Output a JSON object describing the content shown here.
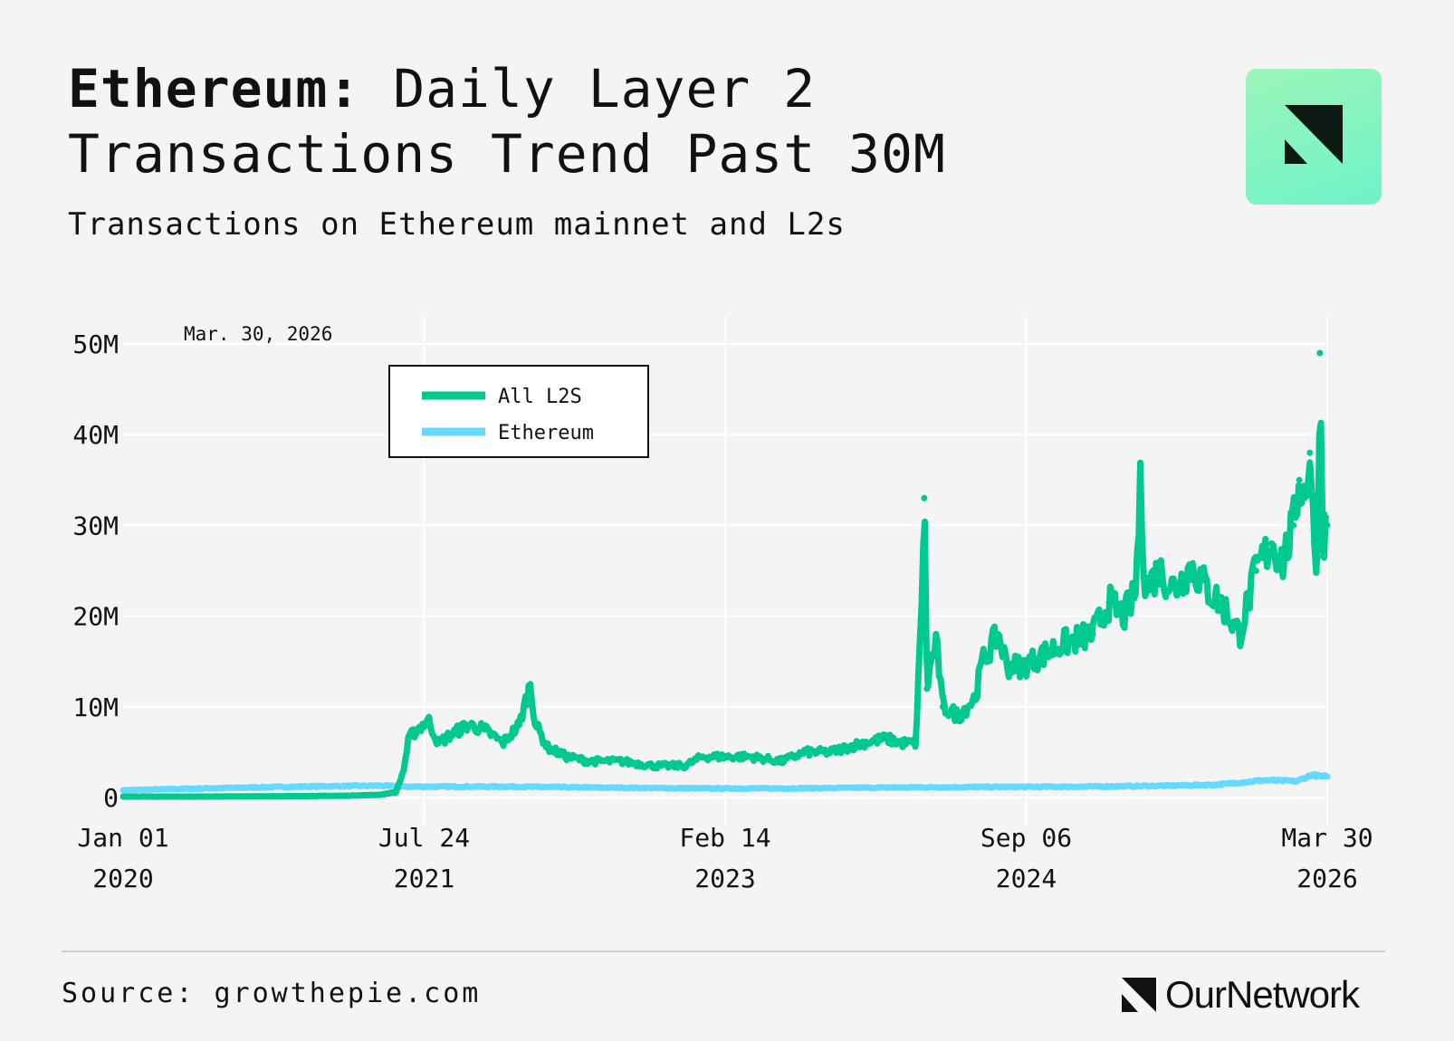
{
  "header": {
    "title_bold": "Ethereum:",
    "title_rest": " Daily Layer 2 Transactions Trend Past 30M",
    "subtitle": "Transactions on Ethereum mainnet and L2s"
  },
  "footer": {
    "source": "Source: growthepie.com",
    "brand": "OurNetwork"
  },
  "colors": {
    "l2": "#00c98f",
    "ethereum": "#66d9ff",
    "background": "#f4f4f4",
    "grid": "#ffffff"
  },
  "chart_data": {
    "type": "line",
    "title": "Ethereum: Daily Layer 2 Transactions Trend Past 30M",
    "subtitle": "Transactions on Ethereum mainnet and L2s",
    "annotation": "Mar. 30, 2026",
    "x_ticks": [
      {
        "date": "2020-01-01",
        "line1": "Jan 01",
        "line2": "2020"
      },
      {
        "date": "2021-07-24",
        "line1": "Jul 24",
        "line2": "2021"
      },
      {
        "date": "2023-02-14",
        "line1": "Feb 14",
        "line2": "2023"
      },
      {
        "date": "2024-09-06",
        "line1": "Sep 06",
        "line2": "2024"
      },
      {
        "date": "2026-03-30",
        "line1": "Mar 30",
        "line2": "2026"
      }
    ],
    "y_ticks": [
      {
        "value": 0,
        "label": "0"
      },
      {
        "value": 10000000,
        "label": "10M"
      },
      {
        "value": 20000000,
        "label": "20M"
      },
      {
        "value": 30000000,
        "label": "30M"
      },
      {
        "value": 40000000,
        "label": "40M"
      },
      {
        "value": 50000000,
        "label": "50M"
      }
    ],
    "ylim": [
      0,
      50000000
    ],
    "xlim": [
      "2020-01-01",
      "2026-03-30"
    ],
    "grid": true,
    "legend_position": "top-left",
    "series": [
      {
        "name": "All L2S",
        "color": "#00c98f",
        "points": [
          [
            "2020-01-01",
            100000
          ],
          [
            "2020-06-01",
            100000
          ],
          [
            "2020-12-01",
            150000
          ],
          [
            "2021-03-01",
            200000
          ],
          [
            "2021-05-01",
            300000
          ],
          [
            "2021-06-01",
            600000
          ],
          [
            "2021-06-15",
            3000000
          ],
          [
            "2021-06-25",
            6500000
          ],
          [
            "2021-07-10",
            7500000
          ],
          [
            "2021-08-01",
            8500000
          ],
          [
            "2021-08-20",
            6000000
          ],
          [
            "2021-09-15",
            7000000
          ],
          [
            "2021-10-15",
            8000000
          ],
          [
            "2021-11-15",
            7500000
          ],
          [
            "2021-12-20",
            6000000
          ],
          [
            "2022-01-20",
            8000000
          ],
          [
            "2022-02-10",
            12500000
          ],
          [
            "2022-02-20",
            8000000
          ],
          [
            "2022-03-15",
            5500000
          ],
          [
            "2022-04-20",
            4500000
          ],
          [
            "2022-06-01",
            4000000
          ],
          [
            "2022-08-01",
            4000000
          ],
          [
            "2022-10-01",
            3500000
          ],
          [
            "2022-12-01",
            3500000
          ],
          [
            "2023-01-01",
            4500000
          ],
          [
            "2023-02-14",
            4500000
          ],
          [
            "2023-04-01",
            4500000
          ],
          [
            "2023-06-01",
            4000000
          ],
          [
            "2023-07-15",
            5000000
          ],
          [
            "2023-09-01",
            5000000
          ],
          [
            "2023-11-01",
            6000000
          ],
          [
            "2023-12-15",
            6500000
          ],
          [
            "2024-01-15",
            6000000
          ],
          [
            "2024-02-10",
            6000000
          ],
          [
            "2024-02-20",
            20000000
          ],
          [
            "2024-02-26",
            33000000
          ],
          [
            "2024-03-02",
            12000000
          ],
          [
            "2024-03-10",
            15000000
          ],
          [
            "2024-03-20",
            17000000
          ],
          [
            "2024-04-01",
            10000000
          ],
          [
            "2024-05-01",
            9000000
          ],
          [
            "2024-06-01",
            11000000
          ],
          [
            "2024-06-15",
            15000000
          ],
          [
            "2024-07-15",
            18000000
          ],
          [
            "2024-08-01",
            14500000
          ],
          [
            "2024-09-01",
            14500000
          ],
          [
            "2024-10-01",
            15500000
          ],
          [
            "2024-11-15",
            17000000
          ],
          [
            "2025-01-10",
            18000000
          ],
          [
            "2025-02-10",
            21500000
          ],
          [
            "2025-03-10",
            20000000
          ],
          [
            "2025-04-01",
            22500000
          ],
          [
            "2025-04-10",
            34000000
          ],
          [
            "2025-04-20",
            23000000
          ],
          [
            "2025-05-15",
            25000000
          ],
          [
            "2025-06-15",
            23000000
          ],
          [
            "2025-07-15",
            25500000
          ],
          [
            "2025-08-15",
            23000000
          ],
          [
            "2025-09-15",
            21000000
          ],
          [
            "2025-10-15",
            18000000
          ],
          [
            "2025-11-15",
            25000000
          ],
          [
            "2025-12-15",
            28000000
          ],
          [
            "2026-01-05",
            26000000
          ],
          [
            "2026-01-25",
            30000000
          ],
          [
            "2026-02-05",
            35000000
          ],
          [
            "2026-02-15",
            33000000
          ],
          [
            "2026-02-25",
            38000000
          ],
          [
            "2026-03-05",
            28000000
          ],
          [
            "2026-03-12",
            26500000
          ],
          [
            "2026-03-16",
            49000000
          ],
          [
            "2026-03-20",
            32000000
          ],
          [
            "2026-03-24",
            29000000
          ],
          [
            "2026-03-30",
            30000000
          ]
        ]
      },
      {
        "name": "Ethereum",
        "color": "#66d9ff",
        "points": [
          [
            "2020-01-01",
            800000
          ],
          [
            "2020-06-01",
            1000000
          ],
          [
            "2020-12-01",
            1200000
          ],
          [
            "2021-05-01",
            1300000
          ],
          [
            "2021-06-20",
            1200000
          ],
          [
            "2021-07-24",
            1200000
          ],
          [
            "2022-01-01",
            1200000
          ],
          [
            "2022-06-01",
            1100000
          ],
          [
            "2023-01-01",
            1000000
          ],
          [
            "2023-06-01",
            1000000
          ],
          [
            "2024-01-01",
            1100000
          ],
          [
            "2024-06-01",
            1150000
          ],
          [
            "2025-01-01",
            1200000
          ],
          [
            "2025-06-01",
            1300000
          ],
          [
            "2025-09-01",
            1400000
          ],
          [
            "2025-12-01",
            1900000
          ],
          [
            "2026-02-01",
            1800000
          ],
          [
            "2026-03-01",
            2500000
          ],
          [
            "2026-03-20",
            2300000
          ],
          [
            "2026-03-30",
            2300000
          ]
        ]
      }
    ]
  }
}
